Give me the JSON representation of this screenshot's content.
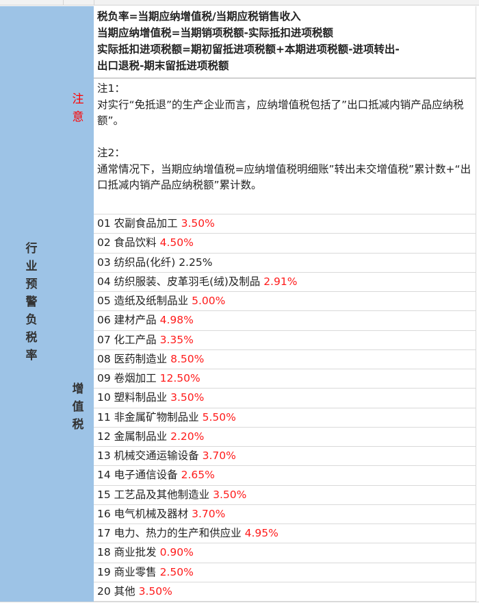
{
  "colors": {
    "label_bg": "#9dc3e6",
    "rate_red": "#ff1a1a",
    "note_red": "#ff0000"
  },
  "side_label": "行业预警负税率",
  "notice_label": "注意",
  "vat_label": "增值税",
  "formula_lines": [
    "税负率=当期应纳增值税/当期应税销售收入",
    "当期应纳增值税=当期销项税额-实际抵扣进项税额",
    "实际抵扣进项税额=期初留抵进项税额+本期进项税额-进项转出-",
    "出口退税-期末留抵进项税额"
  ],
  "notes": {
    "note1_title": "注1：",
    "note1_text": "对实行“免抵退”的生产企业而言，应纳增值税包括了”出口抵减内销产品应纳税额”。",
    "note2_title": "注2：",
    "note2_text": "通常情况下，当期应纳增值税=应纳增值税明细账”转出未交增值税”累计数+“出口抵减内销产品应纳税额”累计数。"
  },
  "industries": [
    {
      "label": "01 农副食品加工",
      "rate": "3.50%",
      "red": true
    },
    {
      "label": "02 食品饮料",
      "rate": "4.50%",
      "red": true
    },
    {
      "label": "03 纺织品(化纤)",
      "rate": "2.25%",
      "red": false
    },
    {
      "label": "04 纺织服装、皮革羽毛(绒)及制品",
      "rate": "2.91%",
      "red": true
    },
    {
      "label": "05 造纸及纸制品业",
      "rate": "5.00%",
      "red": true
    },
    {
      "label": "06 建材产品",
      "rate": "4.98%",
      "red": true
    },
    {
      "label": "07 化工产品",
      "rate": "3.35%",
      "red": true
    },
    {
      "label": "08 医药制造业",
      "rate": "8.50%",
      "red": true
    },
    {
      "label": "09 卷烟加工",
      "rate": "12.50%",
      "red": true
    },
    {
      "label": "10 塑料制品业",
      "rate": "3.50%",
      "red": true
    },
    {
      "label": "11 非金属矿物制品业",
      "rate": "5.50%",
      "red": true
    },
    {
      "label": "12 金属制品业",
      "rate": "2.20%",
      "red": true
    },
    {
      "label": "13 机械交通运输设备",
      "rate": "3.70%",
      "red": true
    },
    {
      "label": "14 电子通信设备",
      "rate": "2.65%",
      "red": true
    },
    {
      "label": "15 工艺品及其他制造业",
      "rate": "3.50%",
      "red": true
    },
    {
      "label": "16 电气机械及器材",
      "rate": "3.70%",
      "red": true
    },
    {
      "label": "17 电力、热力的生产和供应业",
      "rate": "4.95%",
      "red": true
    },
    {
      "label": "18 商业批发",
      "rate": "0.90%",
      "red": true
    },
    {
      "label": "19 商业零售",
      "rate": "2.50%",
      "red": true
    },
    {
      "label": "20 其他",
      "rate": "3.50%",
      "red": true
    }
  ]
}
